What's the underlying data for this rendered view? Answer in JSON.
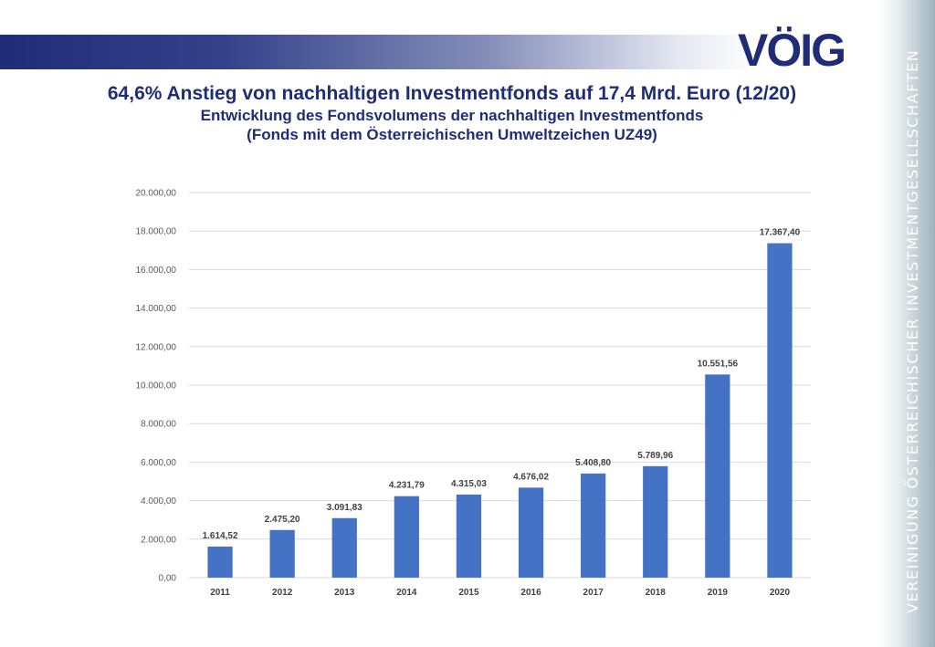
{
  "header": {
    "logo_text": "VÖIG",
    "side_text": "VEREINIGUNG ÖSTERREICHISCHER INVESTMENTGESELLSCHAFTEN"
  },
  "chart_data": {
    "type": "bar",
    "title": "64,6% Anstieg von nachhaltigen Investmentfonds auf 17,4 Mrd. Euro (12/20)",
    "subtitle_lines": [
      "Entwicklung des Fondsvolumens der nachhaltigen Investmentfonds",
      "(Fonds mit dem Österreichischen Umweltzeichen UZ49)"
    ],
    "categories": [
      "2011",
      "2012",
      "2013",
      "2014",
      "2015",
      "2016",
      "2017",
      "2018",
      "2019",
      "2020"
    ],
    "values": [
      1614.52,
      2475.2,
      3091.83,
      4231.79,
      4315.03,
      4676.02,
      5408.8,
      5789.96,
      10551.56,
      17367.4
    ],
    "data_labels": [
      "1.614,52",
      "2.475,20",
      "3.091,83",
      "4.231,79",
      "4.315,03",
      "4.676,02",
      "5.408,80",
      "5.789,96",
      "10.551,56",
      "17.367,40"
    ],
    "ylim": [
      0,
      20000
    ],
    "y_ticks": [
      0,
      2000,
      4000,
      6000,
      8000,
      10000,
      12000,
      14000,
      16000,
      18000,
      20000
    ],
    "y_tick_labels": [
      "0,00",
      "2.000,00",
      "4.000,00",
      "6.000,00",
      "8.000,00",
      "10.000,00",
      "12.000,00",
      "14.000,00",
      "16.000,00",
      "18.000,00",
      "20.000,00"
    ],
    "grid": true,
    "bar_color": "#4472c4",
    "grid_color": "#d9d9d9"
  }
}
